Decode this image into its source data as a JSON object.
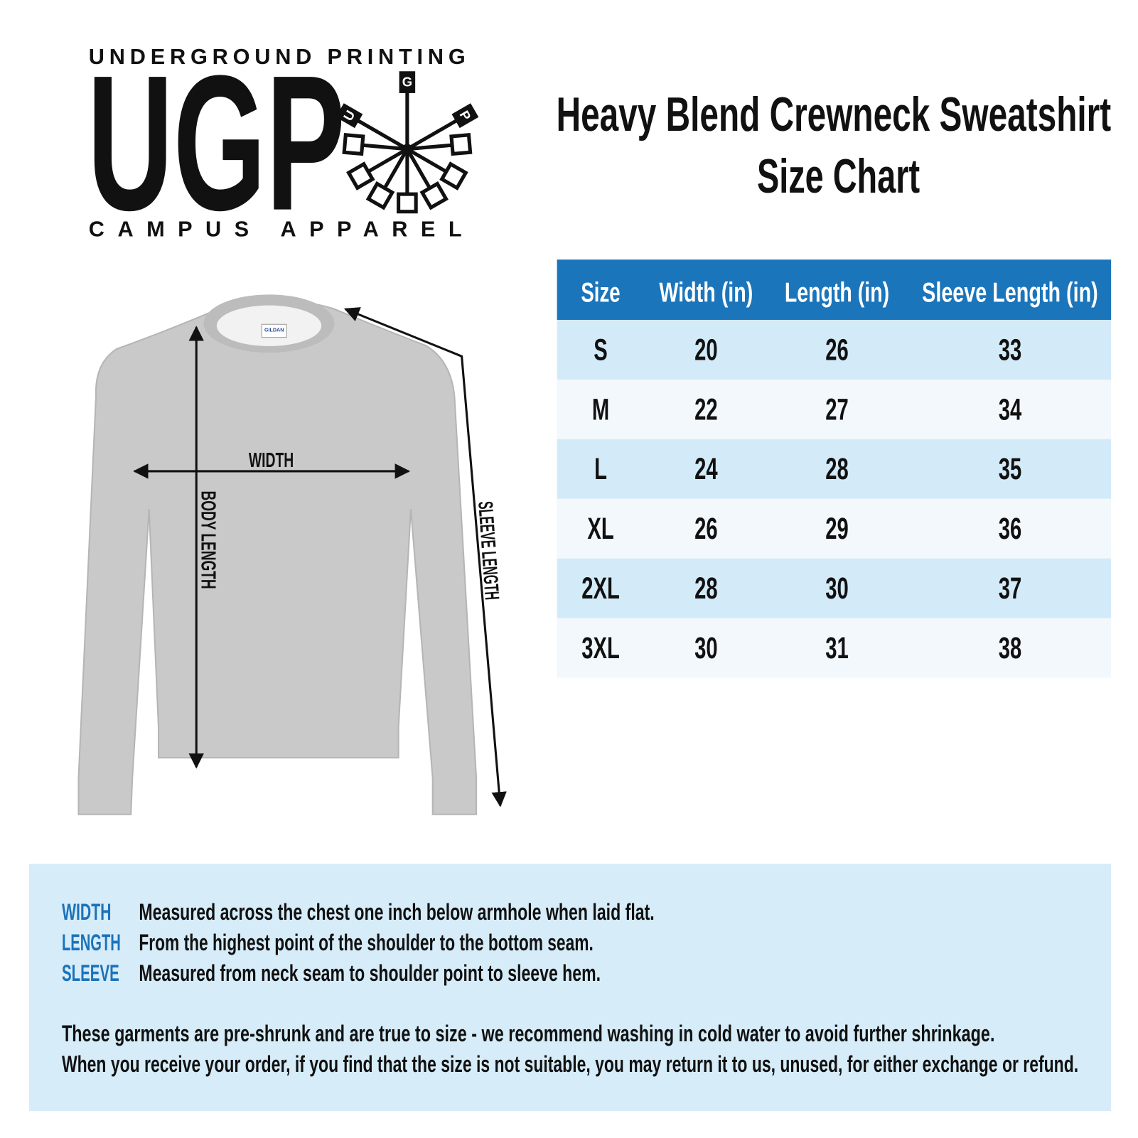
{
  "logo": {
    "top": "UNDERGROUND PRINTING",
    "mark": "UGP",
    "icon_letters": [
      "U",
      "G",
      "P"
    ],
    "bottom": "CAMPUS APPAREL"
  },
  "header": {
    "title": "Heavy Blend Crewneck Sweatshirt",
    "subtitle": "Size Chart"
  },
  "table": {
    "columns": [
      "Size",
      "Width (in)",
      "Length (in)",
      "Sleeve Length (in)"
    ],
    "rows": [
      [
        "S",
        20,
        26,
        33
      ],
      [
        "M",
        22,
        27,
        34
      ],
      [
        "L",
        24,
        28,
        35
      ],
      [
        "XL",
        26,
        29,
        36
      ],
      [
        "2XL",
        28,
        30,
        37
      ],
      [
        "3XL",
        30,
        31,
        38
      ]
    ]
  },
  "diagram": {
    "tag": "GILDAN",
    "width": "WIDTH",
    "body_length": "BODY LENGTH",
    "sleeve_length": "SLEEVE LENGTH"
  },
  "notes": {
    "definitions": [
      {
        "term": "WIDTH",
        "text": "Measured across the chest one inch below armhole when laid flat."
      },
      {
        "term": "LENGTH",
        "text": "From the highest point of the shoulder to the bottom seam."
      },
      {
        "term": "SLEEVE",
        "text": "Measured from neck seam to shoulder point to sleeve hem."
      }
    ],
    "footer": [
      "These garments are pre-shrunk and are true to size - we recommend washing in cold water to avoid further shrinkage.",
      "When you receive your order, if you find that the size is not suitable, you may return it to us, unused, for either exchange or refund."
    ]
  }
}
